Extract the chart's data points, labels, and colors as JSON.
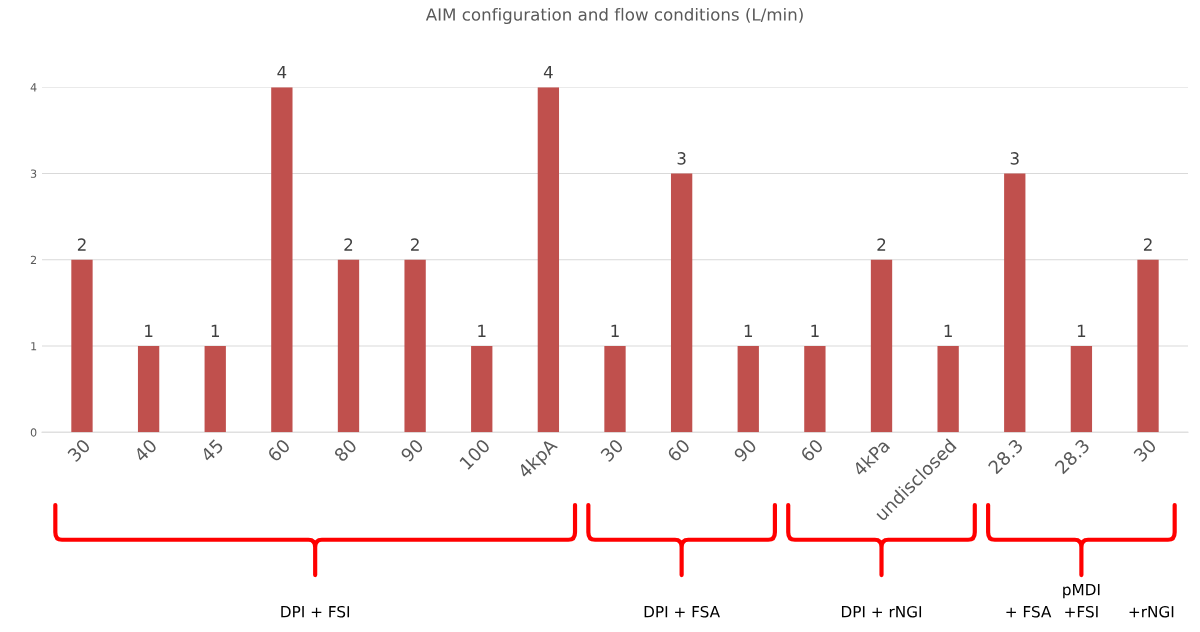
{
  "chart_data": {
    "type": "bar",
    "title": "AIM configuration and flow conditions (L/min)",
    "categories": [
      "30",
      "40",
      "45",
      "60",
      "80",
      "90",
      "100",
      "4kpA",
      "30",
      "60",
      "90",
      "60",
      "4kPa",
      "undisclosed",
      "28.3",
      "28.3",
      "30"
    ],
    "values": [
      2,
      1,
      1,
      4,
      2,
      2,
      1,
      4,
      1,
      3,
      1,
      1,
      2,
      1,
      3,
      1,
      2
    ],
    "color": "#c0504d",
    "ylim": [
      0,
      4
    ],
    "yticks": [
      0,
      1,
      2,
      3,
      4
    ],
    "grid": "y",
    "data_labels": true,
    "annotations": [
      "DPI + FSI",
      "DPI + FSA",
      "DPI + rNGI",
      "pMDI",
      "+ FSA",
      "+FSI",
      "+rNGI"
    ]
  }
}
